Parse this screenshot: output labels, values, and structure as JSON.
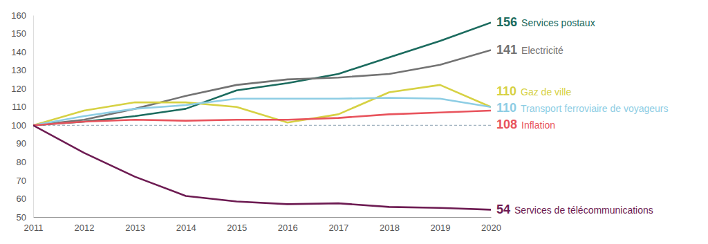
{
  "chart_data": {
    "type": "line",
    "x": [
      2011,
      2012,
      2013,
      2014,
      2015,
      2016,
      2017,
      2018,
      2019,
      2020
    ],
    "xlim": [
      2011,
      2020
    ],
    "xticks": [
      2011,
      2012,
      2013,
      2014,
      2015,
      2016,
      2017,
      2018,
      2019,
      2020
    ],
    "ylim": [
      50,
      160
    ],
    "yticks": [
      50,
      60,
      70,
      80,
      90,
      100,
      110,
      120,
      130,
      140,
      150,
      160
    ],
    "grid": false,
    "data_labels": true,
    "reference_line": {
      "value": 100,
      "line_style": "dashed"
    },
    "series": [
      {
        "name": "Services postaux",
        "color": "#1b6b5e",
        "values": [
          100,
          102,
          105,
          109,
          119,
          123,
          128,
          137,
          146,
          156
        ],
        "value_labels": [
          null,
          null,
          null,
          null,
          null,
          null,
          null,
          null,
          null,
          "156"
        ]
      },
      {
        "name": "Electricité",
        "color": "#737373",
        "values": [
          100,
          103,
          109,
          116,
          122,
          125,
          126,
          128,
          133,
          141
        ],
        "value_labels": [
          null,
          null,
          null,
          null,
          null,
          null,
          null,
          null,
          null,
          "141"
        ]
      },
      {
        "name": "Gaz de ville",
        "color": "#d6d143",
        "values": [
          100,
          108,
          112.5,
          112.5,
          110,
          101.5,
          106,
          118,
          122,
          110
        ],
        "value_labels": [
          null,
          null,
          null,
          null,
          null,
          null,
          null,
          null,
          null,
          "110"
        ]
      },
      {
        "name": "Transport ferroviaire de voyageurs",
        "color": "#8dcde4",
        "values": [
          100,
          105,
          109,
          111,
          114.5,
          114.5,
          114.5,
          115,
          114.5,
          110
        ],
        "value_labels": [
          null,
          null,
          null,
          null,
          null,
          null,
          null,
          null,
          null,
          "110"
        ]
      },
      {
        "name": "Inflation",
        "color": "#e8535c",
        "values": [
          100,
          102,
          103,
          102.5,
          103,
          103,
          104,
          106,
          107,
          108
        ],
        "value_labels": [
          null,
          null,
          null,
          null,
          null,
          null,
          null,
          null,
          null,
          "108"
        ]
      },
      {
        "name": "Services de télécommunications",
        "color": "#6d1b52",
        "values": [
          100,
          85,
          72,
          61.5,
          58.5,
          57,
          57.5,
          55.5,
          55,
          54
        ],
        "value_labels": [
          null,
          null,
          null,
          null,
          null,
          null,
          null,
          null,
          null,
          "54"
        ]
      }
    ]
  }
}
